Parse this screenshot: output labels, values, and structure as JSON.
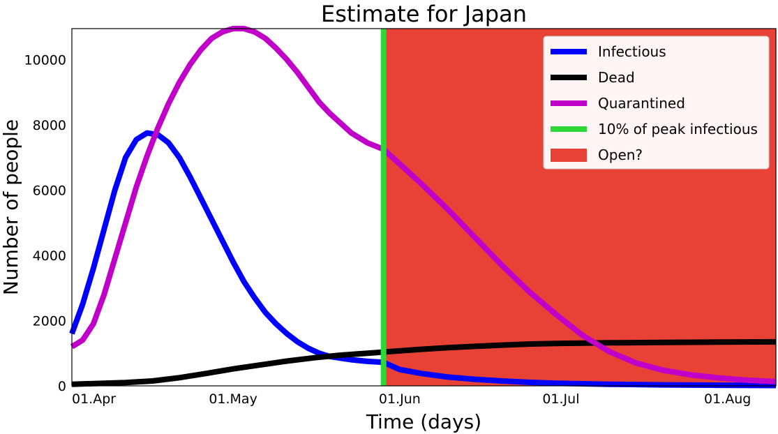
{
  "chart_data": {
    "type": "line",
    "title": "Estimate for Japan",
    "xlabel": "Time (days)",
    "ylabel": "Number of people",
    "x_ticks": [
      {
        "label": "01.Apr",
        "day": 0
      },
      {
        "label": "01.May",
        "day": 30
      },
      {
        "label": "01.Jun",
        "day": 61
      },
      {
        "label": "01.Jul",
        "day": 91
      },
      {
        "label": "01.Aug",
        "day": 122
      }
    ],
    "y_ticks": [
      0,
      2000,
      4000,
      6000,
      8000,
      10000
    ],
    "ylim": [
      0,
      10950
    ],
    "xlim_days": [
      0,
      131
    ],
    "grid": false,
    "legend_position": "top-right",
    "open_region": {
      "label": "Open?",
      "start_day": 58,
      "color": "#e84236"
    },
    "marker_line": {
      "label": "10% of peak infectious",
      "day": 58,
      "color": "#2ed638"
    },
    "series": [
      {
        "name": "Infectious",
        "color": "#0000ff",
        "points": [
          [
            0,
            1600
          ],
          [
            2,
            2500
          ],
          [
            4,
            3600
          ],
          [
            6,
            4800
          ],
          [
            8,
            6000
          ],
          [
            10,
            7000
          ],
          [
            12,
            7550
          ],
          [
            14,
            7750
          ],
          [
            16,
            7700
          ],
          [
            18,
            7450
          ],
          [
            20,
            7000
          ],
          [
            22,
            6400
          ],
          [
            24,
            5750
          ],
          [
            26,
            5100
          ],
          [
            28,
            4450
          ],
          [
            30,
            3800
          ],
          [
            32,
            3200
          ],
          [
            34,
            2700
          ],
          [
            36,
            2250
          ],
          [
            38,
            1900
          ],
          [
            40,
            1600
          ],
          [
            42,
            1350
          ],
          [
            44,
            1150
          ],
          [
            46,
            1000
          ],
          [
            48,
            900
          ],
          [
            50,
            850
          ],
          [
            52,
            800
          ],
          [
            55,
            750
          ],
          [
            58,
            720
          ],
          [
            61,
            500
          ],
          [
            65,
            380
          ],
          [
            70,
            270
          ],
          [
            75,
            200
          ],
          [
            80,
            150
          ],
          [
            85,
            110
          ],
          [
            90,
            80
          ],
          [
            100,
            50
          ],
          [
            110,
            30
          ],
          [
            120,
            20
          ],
          [
            131,
            10
          ]
        ]
      },
      {
        "name": "Dead",
        "color": "#000000",
        "points": [
          [
            0,
            50
          ],
          [
            10,
            100
          ],
          [
            15,
            150
          ],
          [
            20,
            250
          ],
          [
            25,
            380
          ],
          [
            30,
            520
          ],
          [
            35,
            640
          ],
          [
            40,
            760
          ],
          [
            45,
            860
          ],
          [
            50,
            940
          ],
          [
            55,
            1000
          ],
          [
            60,
            1060
          ],
          [
            65,
            1120
          ],
          [
            70,
            1170
          ],
          [
            75,
            1210
          ],
          [
            80,
            1250
          ],
          [
            85,
            1280
          ],
          [
            90,
            1300
          ],
          [
            95,
            1310
          ],
          [
            100,
            1320
          ],
          [
            110,
            1330
          ],
          [
            120,
            1340
          ],
          [
            131,
            1350
          ]
        ]
      },
      {
        "name": "Quarantined",
        "color": "#c000c8",
        "points": [
          [
            0,
            1200
          ],
          [
            2,
            1400
          ],
          [
            4,
            1900
          ],
          [
            6,
            2800
          ],
          [
            8,
            3900
          ],
          [
            10,
            5000
          ],
          [
            12,
            6100
          ],
          [
            14,
            7050
          ],
          [
            16,
            7900
          ],
          [
            18,
            8650
          ],
          [
            20,
            9300
          ],
          [
            22,
            9850
          ],
          [
            24,
            10300
          ],
          [
            26,
            10650
          ],
          [
            28,
            10850
          ],
          [
            30,
            10950
          ],
          [
            32,
            10950
          ],
          [
            34,
            10850
          ],
          [
            36,
            10650
          ],
          [
            38,
            10350
          ],
          [
            40,
            10000
          ],
          [
            42,
            9600
          ],
          [
            44,
            9150
          ],
          [
            46,
            8700
          ],
          [
            48,
            8350
          ],
          [
            50,
            8050
          ],
          [
            52,
            7750
          ],
          [
            55,
            7450
          ],
          [
            58,
            7250
          ],
          [
            61,
            6800
          ],
          [
            65,
            6200
          ],
          [
            70,
            5400
          ],
          [
            75,
            4550
          ],
          [
            80,
            3700
          ],
          [
            85,
            2900
          ],
          [
            90,
            2200
          ],
          [
            95,
            1550
          ],
          [
            100,
            1050
          ],
          [
            105,
            700
          ],
          [
            110,
            480
          ],
          [
            115,
            340
          ],
          [
            120,
            250
          ],
          [
            125,
            180
          ],
          [
            131,
            130
          ]
        ]
      }
    ]
  }
}
